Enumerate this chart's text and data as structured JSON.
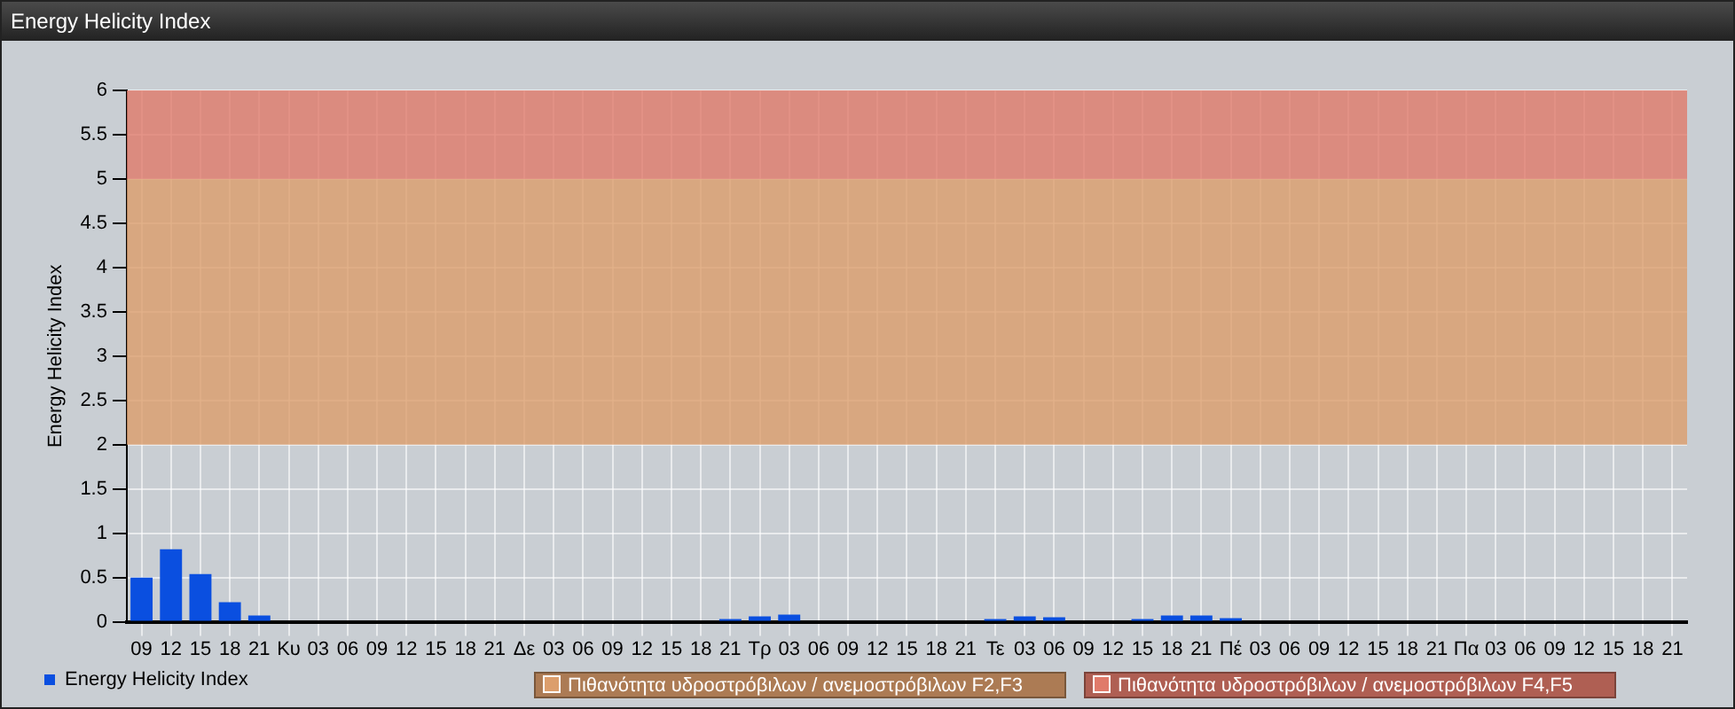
{
  "chart_data": {
    "type": "bar",
    "title": "Energy Helicity Index",
    "ylabel": "Energy Helicity Index",
    "categories": [
      "09",
      "12",
      "15",
      "18",
      "21",
      "Κυ",
      "03",
      "06",
      "09",
      "12",
      "15",
      "18",
      "21",
      "Δε",
      "03",
      "06",
      "09",
      "12",
      "15",
      "18",
      "21",
      "Τρ",
      "03",
      "06",
      "09",
      "12",
      "15",
      "18",
      "21",
      "Τε",
      "03",
      "06",
      "09",
      "12",
      "15",
      "18",
      "21",
      "Πέ",
      "03",
      "06",
      "09",
      "12",
      "15",
      "18",
      "21",
      "Πα",
      "03",
      "06",
      "09",
      "12",
      "15",
      "18",
      "21"
    ],
    "series": [
      {
        "name": "Energy Helicity Index",
        "color": "#0a4fe0",
        "values": [
          0.5,
          0.82,
          0.54,
          0.22,
          0.07,
          0.01,
          0.01,
          0.01,
          0.01,
          0.01,
          0.01,
          0.01,
          0.01,
          0.01,
          0.01,
          0.01,
          0.01,
          0.01,
          0.01,
          0.01,
          0.03,
          0.06,
          0.08,
          0.01,
          0.01,
          0.01,
          0.01,
          0.01,
          0.01,
          0.03,
          0.06,
          0.05,
          0.01,
          0.01,
          0.03,
          0.07,
          0.07,
          0.04,
          0.01,
          0.01,
          0.01,
          0.01,
          0.01,
          0.01,
          0.01,
          0.01,
          0.01,
          0.01,
          0.01,
          0.01,
          0.01,
          0.01,
          0.01
        ]
      }
    ],
    "ylim": [
      0,
      6
    ],
    "yticks": [
      0,
      0.5,
      1,
      1.5,
      2,
      2.5,
      3,
      3.5,
      4,
      4.5,
      5,
      5.5,
      6
    ],
    "grid": true,
    "legend": "bottom left",
    "bands": [
      {
        "axis": "y",
        "from": 2,
        "to": 5,
        "label": "Πιθανότητα υδροστρόβιλων / ανεμοστρόβιλων F2,F3",
        "color": "#dc9e6c"
      },
      {
        "axis": "y",
        "from": 5,
        "to": 6,
        "label": "Πιθανότητα υδροστρόβιλων / ανεμοστρόβιλων F4,F5",
        "color": "#e07a6a"
      }
    ]
  }
}
